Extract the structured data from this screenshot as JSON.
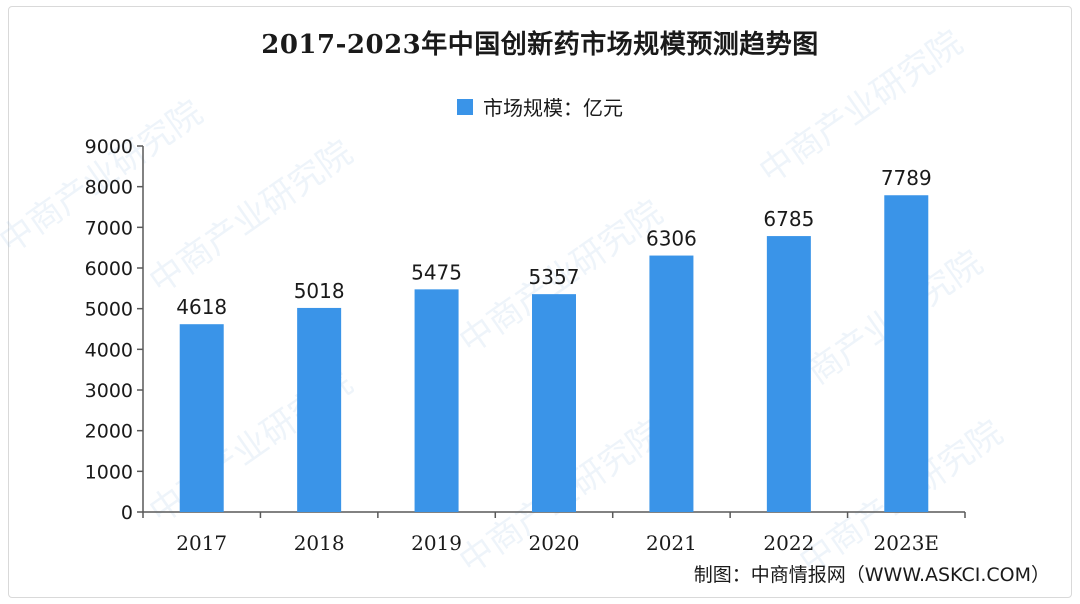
{
  "watermark_text": "中商产业研究院",
  "chart_data": {
    "type": "bar",
    "title": "2017-2023年中国创新药市场规模预测趋势图",
    "legend": [
      "市场规模：亿元"
    ],
    "legend_position": "top-center",
    "categories": [
      "2017",
      "2018",
      "2019",
      "2020",
      "2021",
      "2022",
      "2023E"
    ],
    "series": [
      {
        "name": "市场规模：亿元",
        "values": [
          4618,
          5018,
          5475,
          5357,
          6306,
          6785,
          7789
        ],
        "color": "#3a94e8"
      }
    ],
    "ylim": [
      0,
      9000
    ],
    "yticks": [
      "0",
      "1000",
      "2000",
      "3000",
      "4000",
      "5000",
      "6000",
      "7000",
      "8000",
      "9000"
    ],
    "grid": false,
    "xlabel": "",
    "ylabel": ""
  },
  "source_text": "制图：中商情报网（WWW.ASKCI.COM）"
}
